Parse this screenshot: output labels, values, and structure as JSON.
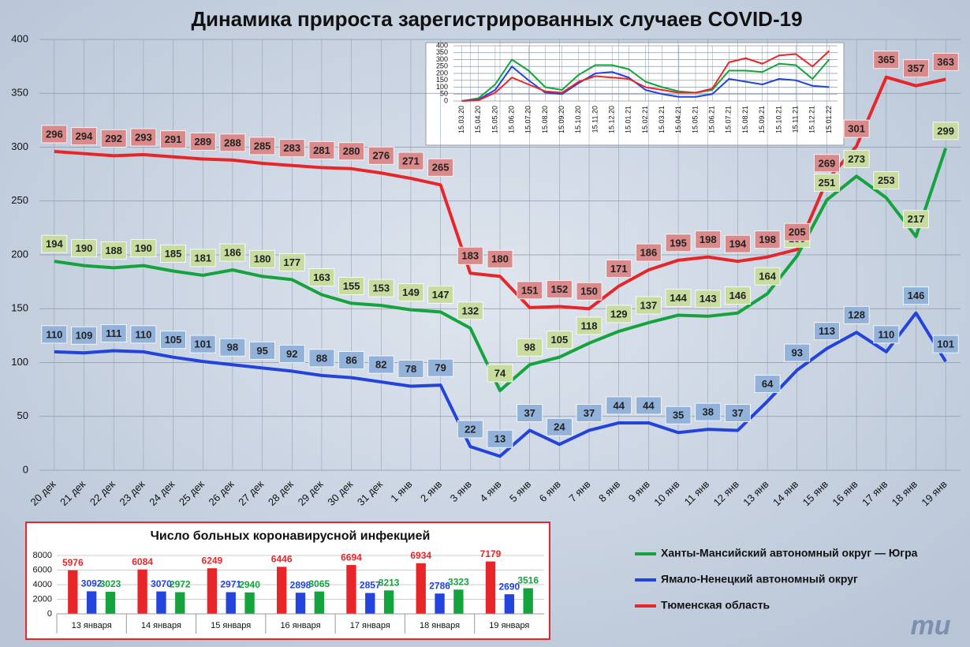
{
  "chart_data": [
    {
      "type": "line",
      "title": "Динамика прироста зарегистрированных случаев COVID-19",
      "categories": [
        "20 дек",
        "21 дек",
        "22 дек",
        "23 дек",
        "24 дек",
        "25 дек",
        "26 дек",
        "27 дек",
        "28 дек",
        "29 дек",
        "30 дек",
        "31 дек",
        "1 янв",
        "2 янв",
        "3 янв",
        "4 янв",
        "5 янв",
        "6 янв",
        "7 янв",
        "8 янв",
        "9 янв",
        "10 янв",
        "11 янв",
        "12 янв",
        "13 янв",
        "14 янв",
        "15 янв",
        "16 янв",
        "17 янв",
        "18 янв",
        "19 янв"
      ],
      "series": [
        {
          "name": "Ханты-Мансийский автономный округ — Югра",
          "color": "#14a33c",
          "label_fill": "#c8dca0",
          "values": [
            194,
            190,
            188,
            190,
            185,
            181,
            186,
            180,
            177,
            163,
            155,
            153,
            149,
            147,
            132,
            74,
            98,
            105,
            118,
            129,
            137,
            144,
            143,
            146,
            164,
            199,
            251,
            273,
            253,
            217,
            299
          ]
        },
        {
          "name": "Ямало-Ненецкий автономный округ",
          "color": "#2244dd",
          "label_fill": "#92b2da",
          "values": [
            110,
            109,
            111,
            110,
            105,
            101,
            98,
            95,
            92,
            88,
            86,
            82,
            78,
            79,
            22,
            13,
            37,
            24,
            37,
            44,
            44,
            35,
            38,
            37,
            64,
            93,
            113,
            128,
            110,
            146,
            101
          ]
        },
        {
          "name": "Тюменская область",
          "color": "#e8262a",
          "label_fill": "#da8a8a",
          "values": [
            296,
            294,
            292,
            293,
            291,
            289,
            288,
            285,
            283,
            281,
            280,
            276,
            271,
            265,
            183,
            180,
            151,
            152,
            150,
            171,
            186,
            195,
            198,
            194,
            198,
            205,
            269,
            301,
            365,
            357,
            363
          ]
        }
      ],
      "ylim": [
        0,
        400
      ],
      "yticks": [
        0,
        50,
        100,
        150,
        200,
        250,
        300,
        350,
        400
      ],
      "grid": true,
      "data_labels": true
    },
    {
      "type": "line",
      "categories": [
        "15.03.20",
        "15.04.20",
        "15.05.20",
        "15.06.20",
        "15.07.20",
        "15.08.20",
        "15.09.20",
        "15.10.20",
        "15.11.20",
        "15.12.20",
        "15.01.21",
        "15.02.21",
        "15.03.21",
        "15.04.21",
        "15.05.21",
        "15.06.21",
        "15.07.21",
        "15.08.21",
        "15.09.21",
        "15.10.21",
        "15.11.21",
        "15.12.21",
        "15.01.22"
      ],
      "series": [
        {
          "color": "#14a33c",
          "values": [
            0,
            20,
            120,
            300,
            220,
            100,
            80,
            190,
            260,
            260,
            230,
            140,
            100,
            70,
            60,
            80,
            220,
            220,
            210,
            270,
            260,
            160,
            300
          ]
        },
        {
          "color": "#2244dd",
          "values": [
            0,
            10,
            80,
            250,
            150,
            60,
            50,
            130,
            200,
            210,
            170,
            80,
            50,
            30,
            30,
            50,
            160,
            140,
            120,
            160,
            150,
            110,
            101
          ]
        },
        {
          "color": "#e8262a",
          "values": [
            0,
            5,
            60,
            170,
            120,
            70,
            60,
            140,
            180,
            170,
            160,
            100,
            80,
            60,
            60,
            90,
            280,
            310,
            270,
            330,
            340,
            250,
            363
          ]
        }
      ],
      "ylim": [
        0,
        400
      ],
      "yticks": [
        0,
        50,
        100,
        150,
        200,
        250,
        300,
        350,
        400
      ],
      "grid": true,
      "data_labels": false
    },
    {
      "type": "bar",
      "title": "Число больных коронавирусной  инфекцией",
      "categories": [
        "13 января",
        "14 января",
        "15 января",
        "16 января",
        "17 января",
        "18 января",
        "19 января"
      ],
      "series": [
        {
          "color": "#e8262a",
          "values": [
            5976,
            6084,
            6249,
            6446,
            6694,
            6934,
            7179
          ]
        },
        {
          "color": "#2244dd",
          "values": [
            3092,
            3070,
            2971,
            2898,
            2857,
            2786,
            2690
          ]
        },
        {
          "color": "#14a33c",
          "values": [
            3023,
            2972,
            2940,
            3065,
            3213,
            3323,
            3516
          ]
        }
      ],
      "ylim": [
        0,
        8000
      ],
      "yticks": [
        0,
        2000,
        4000,
        6000,
        8000
      ],
      "grid": true,
      "data_labels": true
    }
  ],
  "logo": "mu"
}
